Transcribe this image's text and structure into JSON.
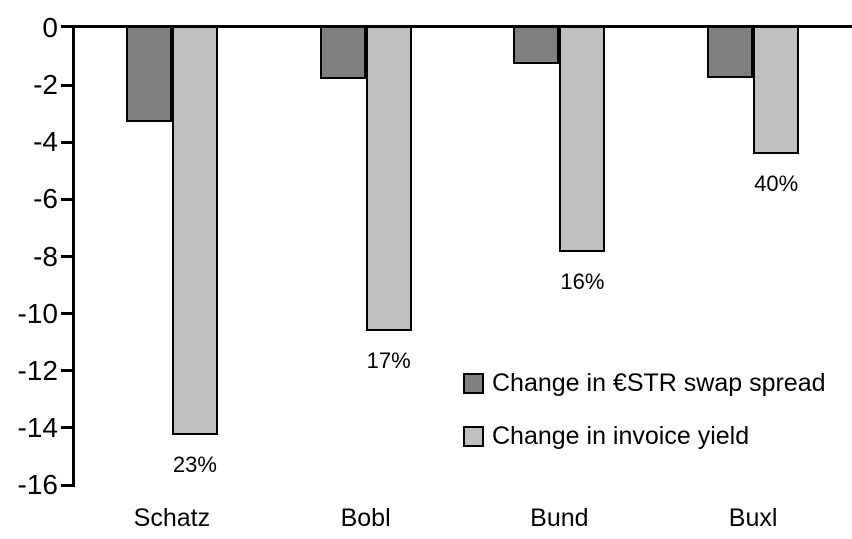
{
  "chart_data": {
    "type": "bar",
    "title": "",
    "xlabel": "",
    "ylabel": "",
    "categories": [
      "Schatz",
      "Bobl",
      "Bund",
      "Buxl"
    ],
    "series": [
      {
        "name": "Change in €STR swap spread",
        "color": "#7F7F7F",
        "values": [
          -3.3,
          -1.8,
          -1.25,
          -1.75
        ]
      },
      {
        "name": "Change in invoice yield",
        "color": "#BFBFBF",
        "values": [
          -14.25,
          -10.6,
          -7.85,
          -4.4
        ],
        "point_labels": [
          "23%",
          "17%",
          "16%",
          "40%"
        ]
      }
    ],
    "ylim": [
      -16,
      0
    ],
    "ytick_step": -2,
    "ytick_labels": [
      "0",
      "-2",
      "-4",
      "-6",
      "-8",
      "-10",
      "-12",
      "-14",
      "-16"
    ],
    "grid": false,
    "legend_position": "inside-right-middle",
    "bar_border_color": "#000000",
    "axis_color": "#000000",
    "background_color": "#FFFFFF"
  }
}
